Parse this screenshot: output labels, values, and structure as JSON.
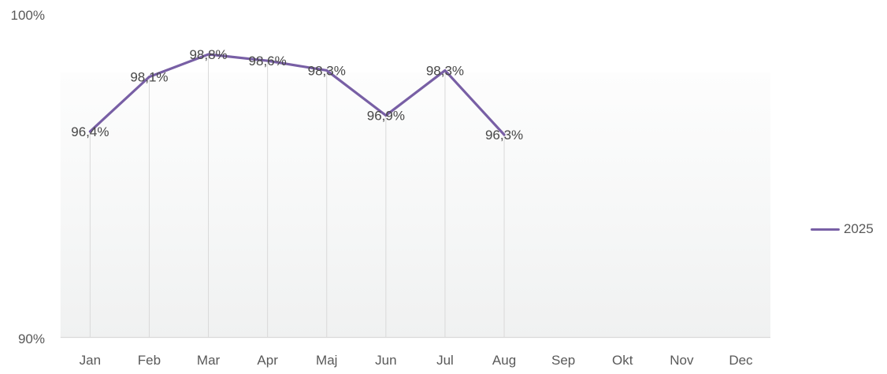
{
  "chart_data": {
    "type": "line",
    "title": "",
    "xlabel": "",
    "ylabel": "",
    "categories": [
      "Jan",
      "Feb",
      "Mar",
      "Apr",
      "Maj",
      "Jun",
      "Jul",
      "Aug",
      "Sep",
      "Okt",
      "Nov",
      "Dec"
    ],
    "series": [
      {
        "name": "2025",
        "values": [
          96.4,
          98.1,
          98.8,
          98.6,
          98.3,
          96.9,
          98.3,
          96.3
        ],
        "point_labels": [
          "96,4%",
          "98,1%",
          "98,8%",
          "98,6%",
          "98,3%",
          "96,9%",
          "98,3%",
          "96,3%"
        ]
      }
    ],
    "ylim": [
      90,
      100
    ],
    "y_axis_labels": {
      "max": "100%",
      "min": "90%"
    },
    "legend_position": "right",
    "decimal_separator": ",",
    "data_label_placement": "centered on points",
    "grid": "vertical drop-lines from each data point down to x-axis; no horizontal gridlines",
    "colors": {
      "series_line": "#785FA5",
      "drop_line": "#D9D9D9",
      "axis_line": "#D9D9D9",
      "plot_band_top": "#FDFDFD",
      "plot_band_bottom": "#F0F1F1",
      "axis_text": "#595959",
      "data_label_text": "#474747"
    }
  }
}
